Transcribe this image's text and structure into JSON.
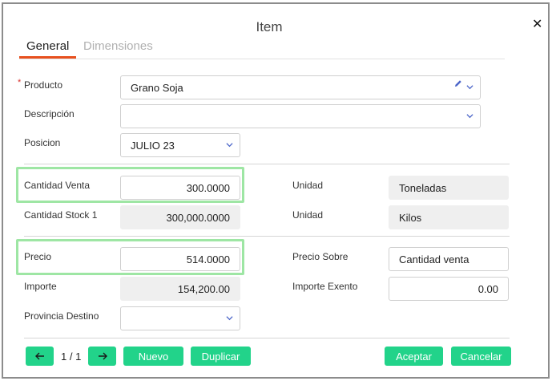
{
  "dialog": {
    "title": "Item"
  },
  "tabs": [
    {
      "label": "General"
    },
    {
      "label": "Dimensiones"
    }
  ],
  "fields": {
    "producto": {
      "label": "Producto",
      "required_mark": "*",
      "value": "Grano Soja"
    },
    "descripcion": {
      "label": "Descripción",
      "value": ""
    },
    "posicion": {
      "label": "Posicion",
      "value": "JULIO 23"
    },
    "cantidad_venta": {
      "label": "Cantidad Venta",
      "value": "300.0000"
    },
    "unidad_1": {
      "label": "Unidad",
      "value": "Toneladas"
    },
    "cantidad_stock": {
      "label": "Cantidad Stock 1",
      "value": "300,000.0000"
    },
    "unidad_2": {
      "label": "Unidad",
      "value": "Kilos"
    },
    "precio": {
      "label": "Precio",
      "value": "514.0000"
    },
    "precio_sobre": {
      "label": "Precio Sobre",
      "value": "Cantidad venta"
    },
    "importe": {
      "label": "Importe",
      "value": "154,200.00"
    },
    "importe_exento": {
      "label": "Importe Exento",
      "value": "0.00"
    },
    "provincia_destino": {
      "label": "Provincia Destino",
      "value": ""
    }
  },
  "footer": {
    "pager": "1 / 1",
    "nuevo": "Nuevo",
    "duplicar": "Duplicar",
    "aceptar": "Aceptar",
    "cancelar": "Cancelar"
  },
  "colors": {
    "accent": "#22d38a",
    "tab_active": "#e8501e",
    "highlight": "#9ee6a4"
  }
}
